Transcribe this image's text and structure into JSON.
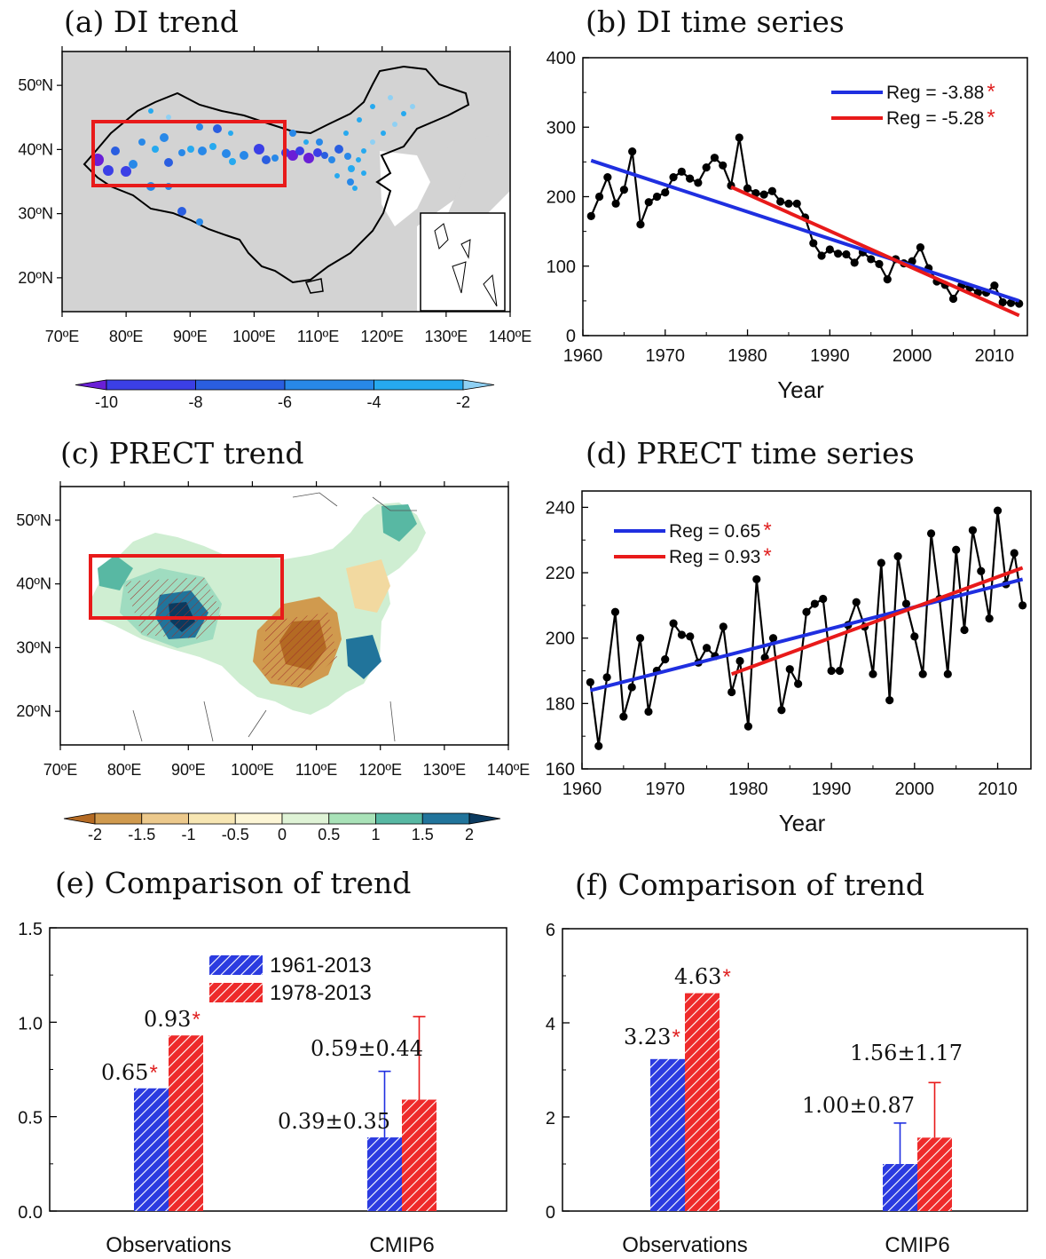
{
  "colors": {
    "land": "#d3d3d3",
    "blue": "#1f2fe0",
    "red": "#e81a1a",
    "star": "#e02020",
    "bar_blue": "#2b3be0",
    "bar_red": "#ee2a2a"
  },
  "panels": {
    "a": {
      "title": "(a)  DI trend",
      "lat_ticks": [
        "50ºN",
        "40ºN",
        "30ºN",
        "20ºN"
      ],
      "lon_ticks": [
        "70ºE",
        "80ºE",
        "90ºE",
        "100ºE",
        "110ºE",
        "120ºE",
        "130ºE",
        "140ºE"
      ],
      "colorbar": {
        "labels": [
          "-10",
          "-8",
          "-6",
          "-4",
          "-2"
        ],
        "colors": [
          "#6a1fd6",
          "#3b3fe6",
          "#2a5ee0",
          "#2888e8",
          "#26a9ef",
          "#8fd0f3"
        ]
      }
    },
    "b": {
      "title": "(b)  DI time series"
    },
    "c": {
      "title": "(c)  PRECT trend",
      "lat_ticks": [
        "50ºN",
        "40ºN",
        "30ºN",
        "20ºN"
      ],
      "lon_ticks": [
        "70ºE",
        "80ºE",
        "90ºE",
        "100ºE",
        "110ºE",
        "120ºE",
        "130ºE",
        "140ºE"
      ],
      "colorbar": {
        "labels": [
          "-2",
          "-1.5",
          "-1",
          "-0.5",
          "0",
          "0.5",
          "1",
          "1.5",
          "2"
        ],
        "colors": [
          "#b46a23",
          "#d09a4e",
          "#ecc98c",
          "#f7e6b3",
          "#fdf6d6",
          "#dff3d6",
          "#a9e2b8",
          "#58b8a3",
          "#21749b",
          "#0b3a5f"
        ]
      }
    },
    "d": {
      "title": "(d)  PRECT time series"
    },
    "e": {
      "title": "(e)  Comparison of trend"
    },
    "f": {
      "title": "(f)  Comparison of trend"
    }
  },
  "chart_data": [
    {
      "panel": "b",
      "type": "line",
      "xlabel": "Year",
      "ylabel": "",
      "xlim": [
        1960,
        2014
      ],
      "ylim": [
        0,
        400
      ],
      "xticks": [
        1960,
        1970,
        1980,
        1990,
        2000,
        2010
      ],
      "yticks": [
        0,
        100,
        200,
        300,
        400
      ],
      "x": [
        1961,
        1962,
        1963,
        1964,
        1965,
        1966,
        1967,
        1968,
        1969,
        1970,
        1971,
        1972,
        1973,
        1974,
        1975,
        1976,
        1977,
        1978,
        1979,
        1980,
        1981,
        1982,
        1983,
        1984,
        1985,
        1986,
        1987,
        1988,
        1989,
        1990,
        1991,
        1992,
        1993,
        1994,
        1995,
        1996,
        1997,
        1998,
        1999,
        2000,
        2001,
        2002,
        2003,
        2004,
        2005,
        2006,
        2007,
        2008,
        2009,
        2010,
        2011,
        2012,
        2013
      ],
      "y": [
        172,
        200,
        228,
        190,
        210,
        265,
        160,
        192,
        200,
        206,
        228,
        236,
        226,
        220,
        242,
        256,
        245,
        216,
        285,
        212,
        205,
        203,
        208,
        193,
        190,
        190,
        170,
        133,
        115,
        124,
        118,
        117,
        105,
        120,
        110,
        103,
        81,
        110,
        104,
        107,
        127,
        97,
        78,
        73,
        53,
        72,
        69,
        62,
        62,
        72,
        48,
        47,
        46
      ],
      "series": [
        {
          "name": "Reg = -3.88",
          "significant": true,
          "color": "blue",
          "x": [
            1961,
            2013
          ],
          "y": [
            252,
            50
          ]
        },
        {
          "name": "Reg = -5.28",
          "significant": true,
          "color": "red",
          "x": [
            1978,
            2013
          ],
          "y": [
            214,
            29
          ]
        }
      ],
      "legend_position": "top-right"
    },
    {
      "panel": "d",
      "type": "line",
      "xlabel": "Year",
      "ylabel": "",
      "xlim": [
        1960,
        2014
      ],
      "ylim": [
        160,
        245
      ],
      "xticks": [
        1960,
        1970,
        1980,
        1990,
        2000,
        2010
      ],
      "yticks": [
        160,
        180,
        200,
        220,
        240
      ],
      "x": [
        1961,
        1962,
        1963,
        1964,
        1965,
        1966,
        1967,
        1968,
        1969,
        1970,
        1971,
        1972,
        1973,
        1974,
        1975,
        1976,
        1977,
        1978,
        1979,
        1980,
        1981,
        1982,
        1983,
        1984,
        1985,
        1986,
        1987,
        1988,
        1989,
        1990,
        1991,
        1992,
        1993,
        1994,
        1995,
        1996,
        1997,
        1998,
        1999,
        2000,
        2001,
        2002,
        2003,
        2004,
        2005,
        2006,
        2007,
        2008,
        2009,
        2010,
        2011,
        2012,
        2013
      ],
      "y": [
        186.5,
        167,
        188,
        208,
        176,
        185,
        200,
        177.5,
        190,
        193.5,
        204.5,
        201,
        200.5,
        192.5,
        197,
        194.5,
        203.5,
        183.5,
        193,
        173,
        218,
        194,
        200,
        178,
        190.5,
        186,
        208,
        210.5,
        212,
        190,
        190,
        204,
        211,
        203.5,
        189,
        223,
        181,
        225,
        210.5,
        200.5,
        189,
        232,
        212,
        189,
        227,
        202.5,
        233,
        220.5,
        206,
        239,
        216.5,
        226,
        210
      ],
      "series": [
        {
          "name": "Reg = 0.65",
          "significant": true,
          "color": "blue",
          "x": [
            1961,
            2013
          ],
          "y": [
            184,
            218
          ]
        },
        {
          "name": "Reg = 0.93",
          "significant": true,
          "color": "red",
          "x": [
            1978,
            2013
          ],
          "y": [
            189,
            221.5
          ]
        }
      ],
      "legend_position": "top-left"
    },
    {
      "panel": "e",
      "type": "bar",
      "categories": [
        "Observations",
        "CMIP6"
      ],
      "ylim": [
        0,
        1.5
      ],
      "yticks": [
        "0.0",
        "0.5",
        "1.0",
        "1.5"
      ],
      "series": [
        {
          "name": "1961-2013",
          "values": [
            0.65,
            0.39
          ],
          "errors": [
            null,
            0.35
          ],
          "labels": [
            "0.65",
            "0.39±0.35"
          ],
          "significant": [
            true,
            false
          ]
        },
        {
          "name": "1978-2013",
          "values": [
            0.93,
            0.59
          ],
          "errors": [
            null,
            0.44
          ],
          "labels": [
            "0.93",
            "0.59±0.44"
          ],
          "significant": [
            true,
            false
          ]
        }
      ],
      "legend_position": "top-center"
    },
    {
      "panel": "f",
      "type": "bar",
      "categories": [
        "Observations",
        "CMIP6"
      ],
      "ylim": [
        0,
        6
      ],
      "yticks": [
        "0",
        "2",
        "4",
        "6"
      ],
      "series": [
        {
          "name": "1961-2013",
          "values": [
            3.23,
            1.0
          ],
          "errors": [
            null,
            0.87
          ],
          "labels": [
            "3.23",
            "1.00±0.87"
          ],
          "significant": [
            true,
            false
          ]
        },
        {
          "name": "1978-2013",
          "values": [
            4.63,
            1.56
          ],
          "errors": [
            null,
            1.17
          ],
          "labels": [
            "4.63",
            "1.56±1.17"
          ],
          "significant": [
            true,
            false
          ]
        }
      ]
    }
  ]
}
